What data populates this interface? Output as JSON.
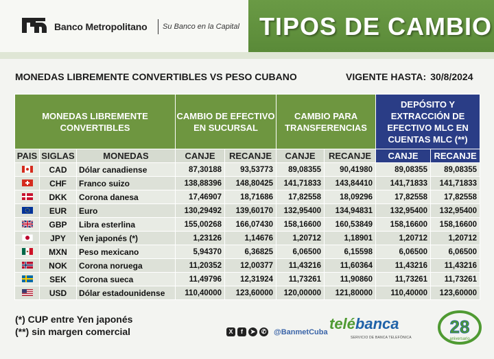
{
  "header": {
    "bank_name": "Banco Metropolitano",
    "slogan": "Su Banco en la Capital",
    "title": "TIPOS DE CAMBIO"
  },
  "subtitle": "MONEDAS LIBREMENTE CONVERTIBLES VS PESO CUBANO",
  "valid": {
    "label": "VIGENTE HASTA:",
    "date": "30/8/2024"
  },
  "table": {
    "group_headers": {
      "currencies": "MONEDAS LIBREMENTE CONVERTIBLES",
      "cash": "CAMBIO DE EFECTIVO EN SUCURSAL",
      "transfers": "CAMBIO PARA TRANSFERENCIAS",
      "mlc": "DEPÓSITO Y EXTRACCIÓN DE EFECTIVO MLC EN CUENTAS MLC (**)"
    },
    "columns": [
      "PAIS",
      "SIGLAS",
      "MONEDAS",
      "CANJE",
      "RECANJE",
      "CANJE",
      "RECANJE",
      "CANJE",
      "RECANJE"
    ],
    "rows": [
      {
        "flag": "canada-flag",
        "code": "CAD",
        "name": "Dólar canadiense",
        "cash_canje": "87,30188",
        "cash_recanje": "93,53773",
        "tr_canje": "89,08355",
        "tr_recanje": "90,41980",
        "mlc_canje": "89,08355",
        "mlc_recanje": "89,08355"
      },
      {
        "flag": "switzerland-flag",
        "code": "CHF",
        "name": "Franco suizo",
        "cash_canje": "138,88396",
        "cash_recanje": "148,80425",
        "tr_canje": "141,71833",
        "tr_recanje": "143,84410",
        "mlc_canje": "141,71833",
        "mlc_recanje": "141,71833"
      },
      {
        "flag": "denmark-flag",
        "code": "DKK",
        "name": "Corona danesa",
        "cash_canje": "17,46907",
        "cash_recanje": "18,71686",
        "tr_canje": "17,82558",
        "tr_recanje": "18,09296",
        "mlc_canje": "17,82558",
        "mlc_recanje": "17,82558"
      },
      {
        "flag": "eu-flag",
        "code": "EUR",
        "name": "Euro",
        "cash_canje": "130,29492",
        "cash_recanje": "139,60170",
        "tr_canje": "132,95400",
        "tr_recanje": "134,94831",
        "mlc_canje": "132,95400",
        "mlc_recanje": "132,95400"
      },
      {
        "flag": "uk-flag",
        "code": "GBP",
        "name": "Libra esterlina",
        "cash_canje": "155,00268",
        "cash_recanje": "166,07430",
        "tr_canje": "158,16600",
        "tr_recanje": "160,53849",
        "mlc_canje": "158,16600",
        "mlc_recanje": "158,16600"
      },
      {
        "flag": "japan-flag",
        "code": "JPY",
        "name": "Yen japonés (*)",
        "cash_canje": "1,23126",
        "cash_recanje": "1,14676",
        "tr_canje": "1,20712",
        "tr_recanje": "1,18901",
        "mlc_canje": "1,20712",
        "mlc_recanje": "1,20712"
      },
      {
        "flag": "mexico-flag",
        "code": "MXN",
        "name": "Peso mexicano",
        "cash_canje": "5,94370",
        "cash_recanje": "6,36825",
        "tr_canje": "6,06500",
        "tr_recanje": "6,15598",
        "mlc_canje": "6,06500",
        "mlc_recanje": "6,06500"
      },
      {
        "flag": "norway-flag",
        "code": "NOK",
        "name": "Corona noruega",
        "cash_canje": "11,20352",
        "cash_recanje": "12,00377",
        "tr_canje": "11,43216",
        "tr_recanje": "11,60364",
        "mlc_canje": "11,43216",
        "mlc_recanje": "11,43216"
      },
      {
        "flag": "sweden-flag",
        "code": "SEK",
        "name": "Corona sueca",
        "cash_canje": "11,49796",
        "cash_recanje": "12,31924",
        "tr_canje": "11,73261",
        "tr_recanje": "11,90860",
        "mlc_canje": "11,73261",
        "mlc_recanje": "11,73261"
      },
      {
        "flag": "usa-flag",
        "code": "USD",
        "name": "Dólar estadounidense",
        "cash_canje": "110,40000",
        "cash_recanje": "123,60000",
        "tr_canje": "120,00000",
        "tr_recanje": "121,80000",
        "mlc_canje": "110,40000",
        "mlc_recanje": "123,60000"
      }
    ]
  },
  "notes": [
    "(*) CUP entre Yen japonés",
    "(**) sin margen comercial"
  ],
  "footer": {
    "social_icons": [
      "x-icon",
      "facebook-icon",
      "telegram-icon",
      "whatsapp-icon"
    ],
    "handle": "@BanmetCuba",
    "telebanca": {
      "part1": "telé",
      "part2": "banca",
      "sub": "SERVICIO DE BANCA TELEFÓNICA"
    },
    "badge_number": "28",
    "badge_text": "aniversario"
  },
  "colors": {
    "green": "#6e9640",
    "blue": "#2a3d86",
    "header_green": "#5f8f3c"
  }
}
